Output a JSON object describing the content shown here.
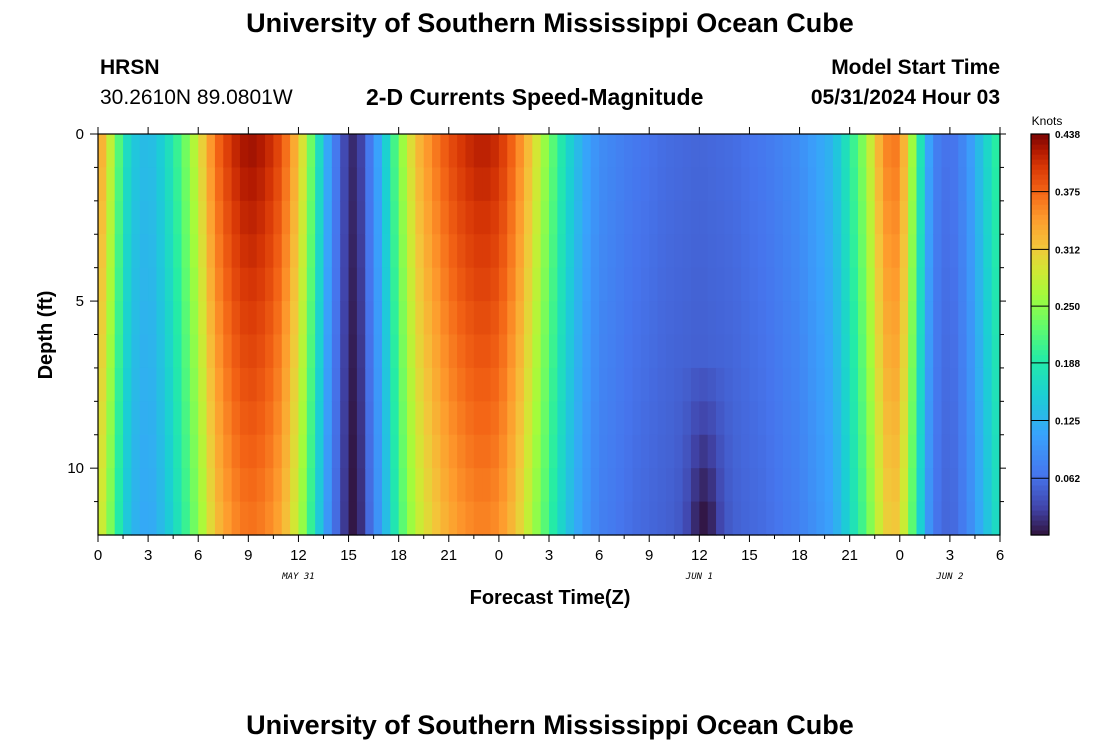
{
  "header": {
    "title": "University of Southern Mississippi Ocean Cube",
    "title_bottom": "University of Southern Mississippi Ocean Cube",
    "station": "HRSN",
    "location": "30.2610N  89.0801W",
    "subtitle": "2-D Currents Speed-Magnitude",
    "model_start_label": "Model Start Time",
    "model_start_value": "05/31/2024 Hour 03"
  },
  "chart_data": {
    "type": "heatmap",
    "title": "2-D Currents Speed-Magnitude",
    "xlabel": "Forecast Time(Z)",
    "ylabel": "Depth (ft)",
    "colorbar_label": "Knots",
    "x_range_hours": [
      0,
      54
    ],
    "y_range_ft": [
      0,
      12
    ],
    "x_tick_labels": [
      "0",
      "3",
      "6",
      "9",
      "12",
      "15",
      "18",
      "21",
      "0",
      "3",
      "6",
      "9",
      "12",
      "15",
      "18",
      "21",
      "0",
      "3",
      "6"
    ],
    "y_tick_labels": [
      "0",
      "5",
      "10"
    ],
    "y_tick_values": [
      0,
      5,
      10
    ],
    "date_labels": [
      {
        "label": "MAY 31",
        "hour": 12
      },
      {
        "label": "JUN 1",
        "hour": 36
      },
      {
        "label": "JUN 2",
        "hour": 51
      }
    ],
    "colorbar_ticks": [
      "0.062",
      "0.125",
      "0.188",
      "0.250",
      "0.312",
      "0.375",
      "0.438"
    ],
    "colorbar_values": [
      0.062,
      0.125,
      0.188,
      0.25,
      0.312,
      0.375,
      0.438
    ],
    "value_range": [
      0,
      0.438
    ],
    "surface_speed_profile": {
      "hours": [
        0,
        0.5,
        1,
        1.5,
        2,
        3,
        4,
        5,
        6,
        7,
        8,
        9,
        10,
        11,
        12,
        12.5,
        13,
        13.5,
        14,
        14.5,
        15,
        15.5,
        16,
        17,
        18,
        19,
        20,
        21,
        22,
        23,
        24,
        25,
        26,
        27,
        28,
        29,
        30,
        32,
        34,
        36,
        38,
        40,
        42,
        44,
        45,
        46,
        46.5,
        47,
        47.5,
        48,
        48.5,
        49,
        49.5,
        50,
        51,
        52,
        53,
        54
      ],
      "knots": [
        0.35,
        0.31,
        0.25,
        0.19,
        0.15,
        0.13,
        0.16,
        0.22,
        0.29,
        0.37,
        0.41,
        0.43,
        0.42,
        0.39,
        0.32,
        0.27,
        0.2,
        0.14,
        0.09,
        0.05,
        0.02,
        0.01,
        0.05,
        0.13,
        0.24,
        0.32,
        0.36,
        0.39,
        0.41,
        0.42,
        0.41,
        0.37,
        0.31,
        0.24,
        0.17,
        0.12,
        0.09,
        0.07,
        0.06,
        0.055,
        0.06,
        0.07,
        0.09,
        0.13,
        0.19,
        0.26,
        0.31,
        0.35,
        0.37,
        0.36,
        0.3,
        0.22,
        0.14,
        0.08,
        0.06,
        0.09,
        0.15,
        0.21
      ],
      "deep_knots_note": "values decrease with depth; minima near hour 15 and hour 36 at depth"
    }
  }
}
